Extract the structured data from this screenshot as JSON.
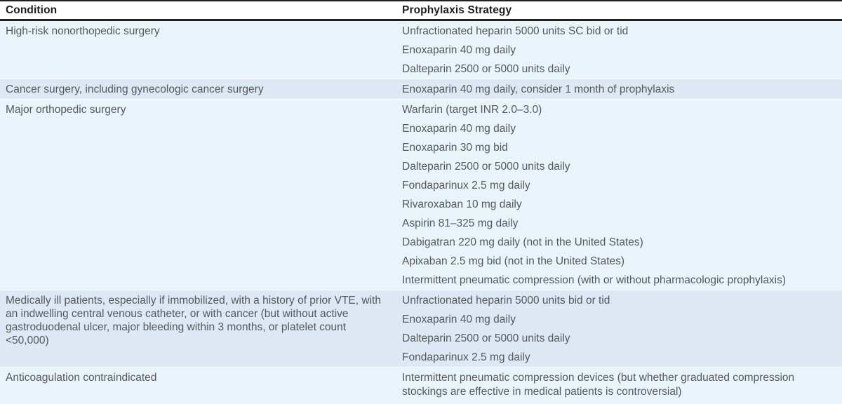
{
  "table": {
    "header": {
      "condition": "Condition",
      "strategy": "Prophylaxis Strategy"
    },
    "rows": [
      {
        "condition": "High-risk nonorthopedic surgery",
        "strategies": [
          "Unfractionated heparin 5000 units SC bid or tid",
          "Enoxaparin 40 mg daily",
          "Dalteparin 2500 or 5000 units daily"
        ]
      },
      {
        "condition": "Cancer surgery, including gynecologic cancer surgery",
        "strategies": [
          "Enoxaparin 40 mg daily, consider 1 month of prophylaxis"
        ]
      },
      {
        "condition": "Major orthopedic surgery",
        "strategies": [
          "Warfarin (target INR 2.0–3.0)",
          "Enoxaparin 40 mg daily",
          "Enoxaparin 30 mg bid",
          "Dalteparin 2500 or 5000 units daily",
          "Fondaparinux 2.5 mg daily",
          "Rivaroxaban 10 mg daily",
          "Aspirin 81–325 mg daily",
          "Dabigatran 220 mg daily (not in the United States)",
          "Apixaban 2.5 mg bid (not in the United States)",
          "Intermittent pneumatic compression (with or without pharmacologic prophylaxis)"
        ]
      },
      {
        "condition": "Medically ill patients, especially if immobilized, with a history of prior VTE, with an indwelling central venous catheter, or with cancer (but without active gastroduodenal ulcer, major bleeding within 3 months, or platelet count <50,000)",
        "strategies": [
          "Unfractionated heparin 5000 units bid or tid",
          "Enoxaparin 40 mg daily",
          "Dalteparin 2500 or 5000 units daily",
          "Fondaparinux 2.5 mg daily"
        ]
      },
      {
        "condition": "Anticoagulation contraindicated",
        "strategies": [
          "Intermittent pneumatic compression devices (but whether graduated compression stockings are effective in medical patients is controversial)"
        ]
      }
    ],
    "colors": {
      "row_light": "#e9f3fa",
      "row_dark": "#dde8f4",
      "border_dark": "#231f20",
      "text_body": "#57585b",
      "text_header": "#1d1d1f"
    }
  }
}
